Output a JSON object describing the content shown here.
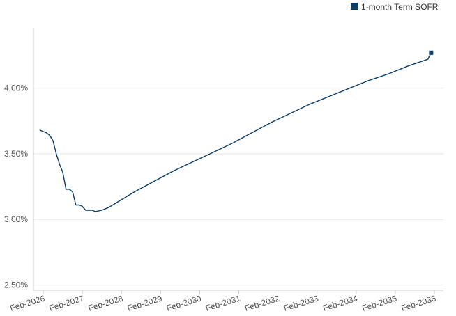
{
  "chart_data": {
    "type": "line",
    "title": "",
    "xlabel": "",
    "ylabel": "",
    "legend": {
      "position": "top-right"
    },
    "grid": {
      "horizontal": true,
      "vertical": false
    },
    "y_ticks": [
      {
        "value": 2.5,
        "label": "2.50%"
      },
      {
        "value": 3.0,
        "label": "3.00%"
      },
      {
        "value": 3.5,
        "label": "3.50%"
      },
      {
        "value": 4.0,
        "label": "4.00%"
      }
    ],
    "x_ticks": [
      {
        "value": "2026-02",
        "label": "Feb-2026"
      },
      {
        "value": "2027-02",
        "label": "Feb-2027"
      },
      {
        "value": "2028-02",
        "label": "Feb-2028"
      },
      {
        "value": "2029-02",
        "label": "Feb-2029"
      },
      {
        "value": "2030-02",
        "label": "Feb-2030"
      },
      {
        "value": "2031-02",
        "label": "Feb-2031"
      },
      {
        "value": "2032-02",
        "label": "Feb-2032"
      },
      {
        "value": "2033-02",
        "label": "Feb-2033"
      },
      {
        "value": "2034-02",
        "label": "Feb-2034"
      },
      {
        "value": "2035-02",
        "label": "Feb-2035"
      },
      {
        "value": "2036-02",
        "label": "Feb-2036"
      }
    ],
    "xlim": [
      "2026-02",
      "2036-02"
    ],
    "ylim": [
      2.46,
      4.46
    ],
    "series": [
      {
        "name": "1-month Term SOFR",
        "color": "#0b3d6b",
        "end_marker": "square",
        "points": [
          {
            "x": "2026-01",
            "y": 3.68
          },
          {
            "x": "2026-03",
            "y": 3.66
          },
          {
            "x": "2026-04",
            "y": 3.64
          },
          {
            "x": "2026-05",
            "y": 3.6
          },
          {
            "x": "2026-06",
            "y": 3.5
          },
          {
            "x": "2026-07",
            "y": 3.42
          },
          {
            "x": "2026-08",
            "y": 3.36
          },
          {
            "x": "2026-09",
            "y": 3.23
          },
          {
            "x": "2026-10",
            "y": 3.23
          },
          {
            "x": "2026-11",
            "y": 3.21
          },
          {
            "x": "2026-12",
            "y": 3.11
          },
          {
            "x": "2027-01",
            "y": 3.11
          },
          {
            "x": "2027-02",
            "y": 3.1
          },
          {
            "x": "2027-03",
            "y": 3.07
          },
          {
            "x": "2027-04",
            "y": 3.07
          },
          {
            "x": "2027-05",
            "y": 3.07
          },
          {
            "x": "2027-06",
            "y": 3.06
          },
          {
            "x": "2027-08",
            "y": 3.07
          },
          {
            "x": "2027-10",
            "y": 3.09
          },
          {
            "x": "2027-12",
            "y": 3.12
          },
          {
            "x": "2028-02",
            "y": 3.15
          },
          {
            "x": "2028-06",
            "y": 3.21
          },
          {
            "x": "2028-12",
            "y": 3.29
          },
          {
            "x": "2029-06",
            "y": 3.37
          },
          {
            "x": "2029-12",
            "y": 3.44
          },
          {
            "x": "2030-06",
            "y": 3.51
          },
          {
            "x": "2030-12",
            "y": 3.58
          },
          {
            "x": "2031-06",
            "y": 3.66
          },
          {
            "x": "2031-12",
            "y": 3.74
          },
          {
            "x": "2032-06",
            "y": 3.81
          },
          {
            "x": "2032-12",
            "y": 3.88
          },
          {
            "x": "2033-06",
            "y": 3.94
          },
          {
            "x": "2033-12",
            "y": 4.0
          },
          {
            "x": "2034-06",
            "y": 4.06
          },
          {
            "x": "2034-12",
            "y": 4.11
          },
          {
            "x": "2035-06",
            "y": 4.17
          },
          {
            "x": "2035-12",
            "y": 4.22
          },
          {
            "x": "2036-01",
            "y": 4.27
          }
        ]
      }
    ]
  }
}
